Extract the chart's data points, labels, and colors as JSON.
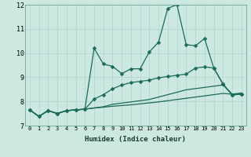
{
  "xlabel": "Humidex (Indice chaleur)",
  "xlim": [
    -0.5,
    23.5
  ],
  "ylim": [
    7,
    12
  ],
  "yticks": [
    7,
    8,
    9,
    10,
    11,
    12
  ],
  "xticks": [
    0,
    1,
    2,
    3,
    4,
    5,
    6,
    7,
    8,
    9,
    10,
    11,
    12,
    13,
    14,
    15,
    16,
    17,
    18,
    19,
    20,
    21,
    22,
    23
  ],
  "bg_color": "#cce8e0",
  "grid_color": "#aad4cc",
  "line_color": "#1a6b5a",
  "lines": [
    {
      "y": [
        7.65,
        7.38,
        7.62,
        7.5,
        7.62,
        7.65,
        7.68,
        10.2,
        9.55,
        9.45,
        9.15,
        9.35,
        9.35,
        10.05,
        10.45,
        11.85,
        12.0,
        10.35,
        10.3,
        10.6,
        9.38,
        8.72,
        8.27,
        8.3
      ],
      "marker": true,
      "marker_symbol": "D",
      "marker_size": 2.5,
      "linewidth": 0.9
    },
    {
      "y": [
        7.65,
        7.38,
        7.62,
        7.5,
        7.62,
        7.65,
        7.68,
        8.1,
        8.28,
        8.52,
        8.68,
        8.78,
        8.83,
        8.88,
        8.98,
        9.03,
        9.08,
        9.13,
        9.38,
        9.43,
        9.38,
        8.72,
        8.27,
        8.3
      ],
      "marker": true,
      "marker_symbol": "D",
      "marker_size": 2.5,
      "linewidth": 0.9
    },
    {
      "y": [
        7.65,
        7.38,
        7.62,
        7.5,
        7.62,
        7.65,
        7.68,
        7.73,
        7.78,
        7.88,
        7.93,
        7.98,
        8.03,
        8.08,
        8.18,
        8.28,
        8.38,
        8.48,
        8.53,
        8.58,
        8.63,
        8.68,
        8.3,
        8.35
      ],
      "marker": false,
      "linewidth": 0.9
    },
    {
      "y": [
        7.65,
        7.38,
        7.62,
        7.5,
        7.62,
        7.65,
        7.68,
        7.73,
        7.76,
        7.8,
        7.83,
        7.86,
        7.9,
        7.94,
        7.98,
        8.03,
        8.08,
        8.13,
        8.18,
        8.23,
        8.28,
        8.33,
        8.3,
        8.3
      ],
      "marker": false,
      "linewidth": 0.9
    }
  ]
}
